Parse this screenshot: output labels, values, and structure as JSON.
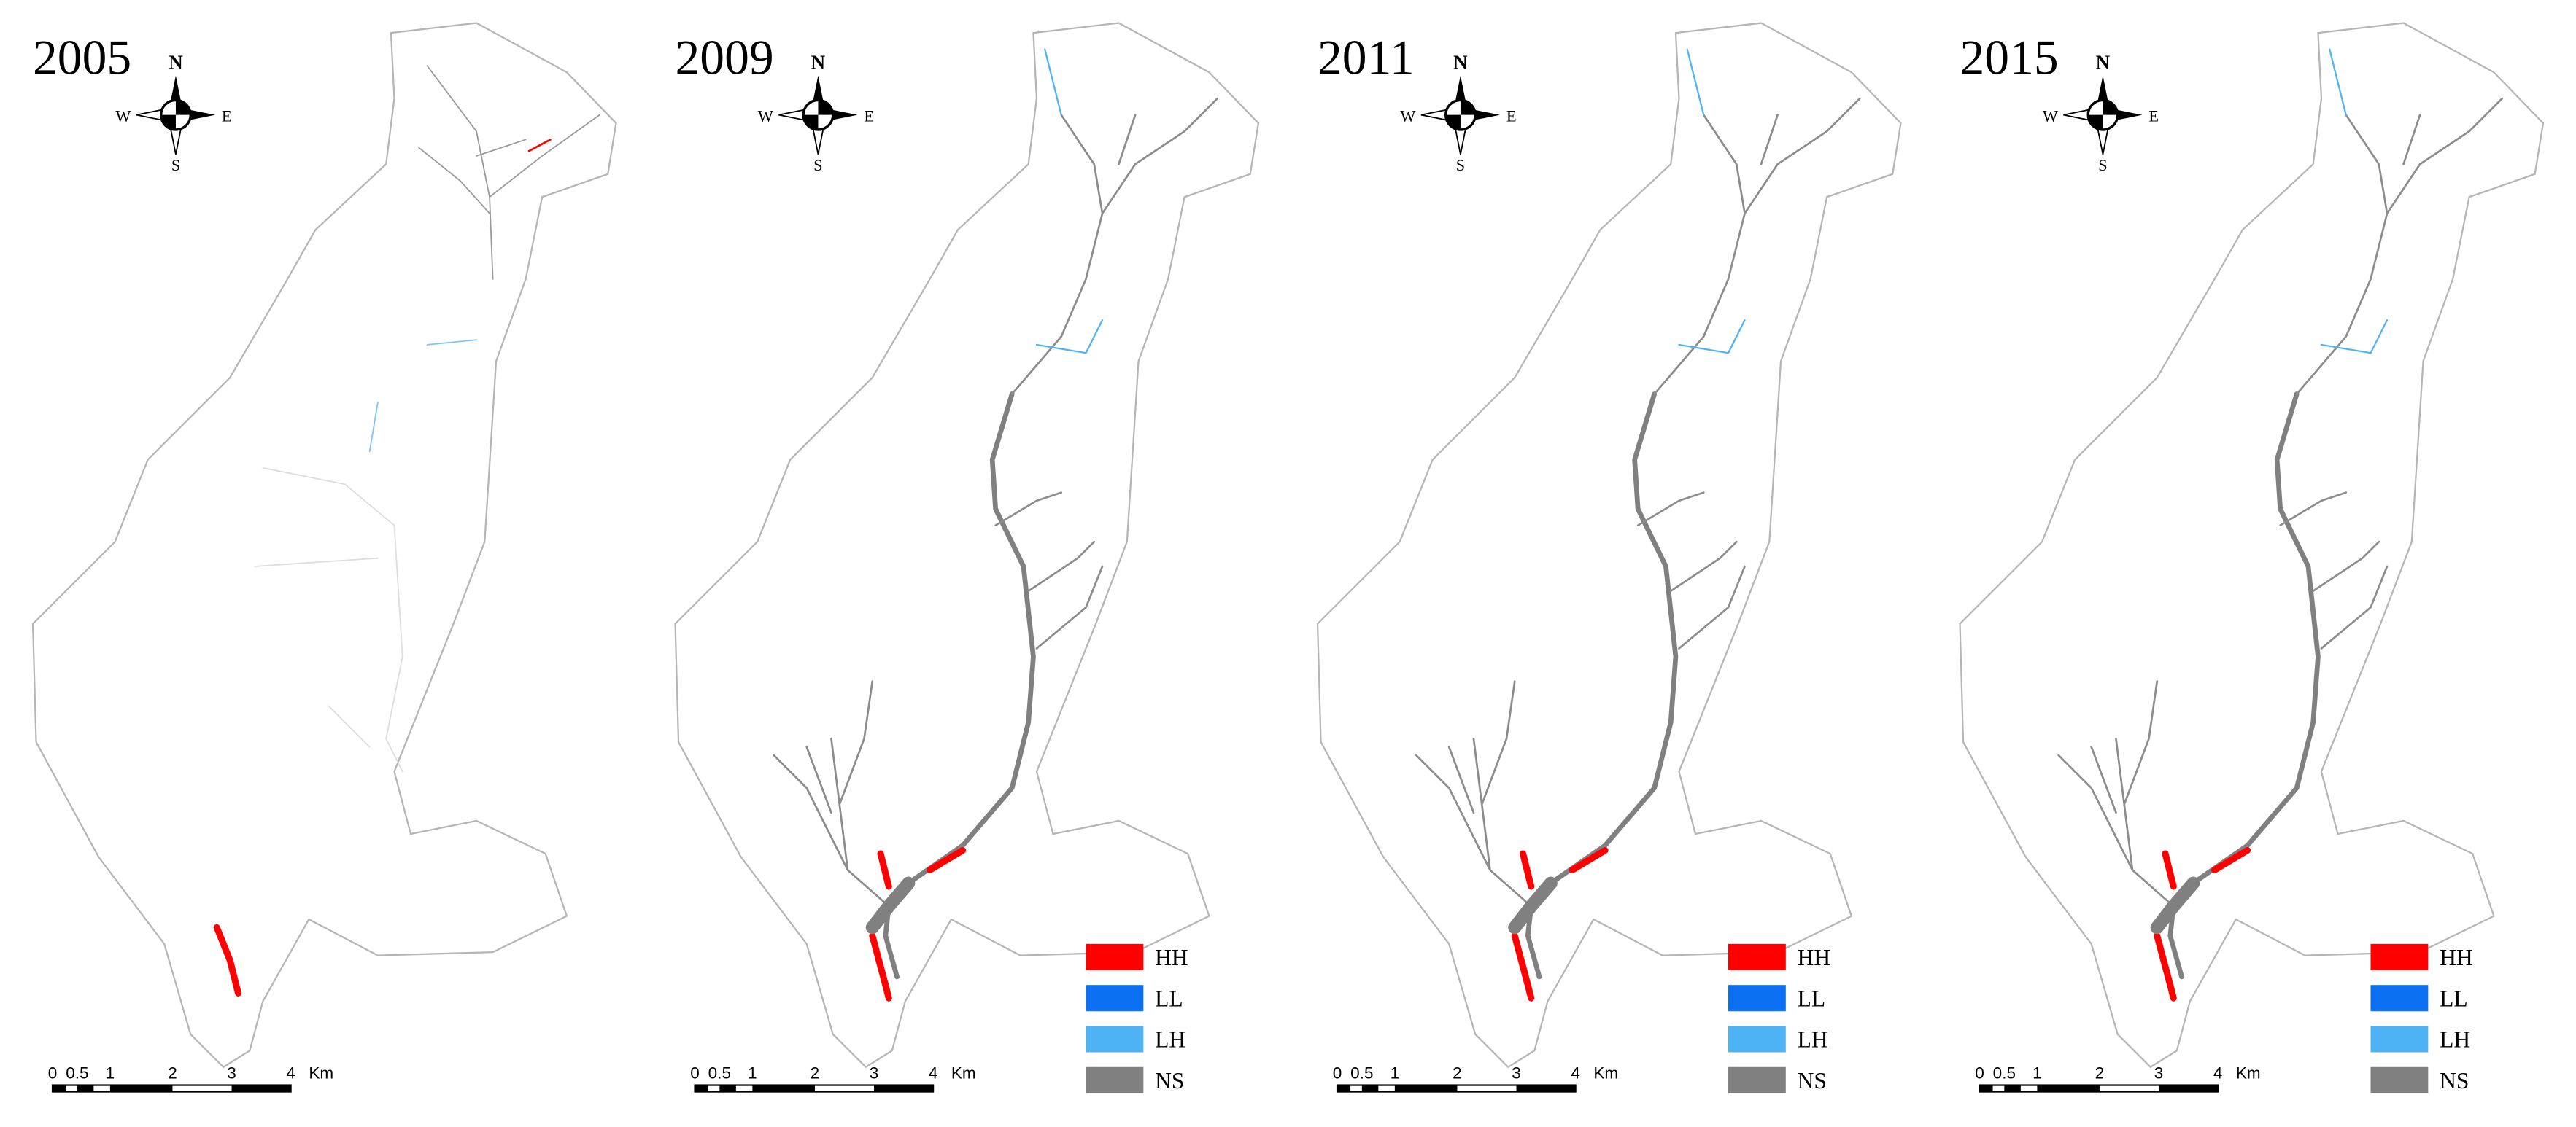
{
  "panels": [
    {
      "year": "2005",
      "compass": {
        "n": "N",
        "w": "W",
        "e": "E",
        "s": "S"
      },
      "scale": [
        "0",
        "0.5",
        "1",
        "2",
        "3",
        "4",
        "Km"
      ]
    },
    {
      "year": "2009",
      "compass": {
        "n": "N",
        "w": "W",
        "e": "E",
        "s": "S"
      },
      "scale": [
        "0",
        "0.5",
        "1",
        "2",
        "3",
        "4",
        "Km"
      ],
      "legend": [
        {
          "label": "HH",
          "color": "#ff0000"
        },
        {
          "label": "LL",
          "color": "#0a6ff0"
        },
        {
          "label": "LH",
          "color": "#4db3f5"
        },
        {
          "label": "NS",
          "color": "#808080"
        }
      ]
    },
    {
      "year": "2011",
      "compass": {
        "n": "N",
        "w": "W",
        "e": "E",
        "s": "S"
      },
      "scale": [
        "0",
        "0.5",
        "1",
        "2",
        "3",
        "4",
        "Km"
      ],
      "legend": [
        {
          "label": "HH",
          "color": "#ff0000"
        },
        {
          "label": "LL",
          "color": "#0a6ff0"
        },
        {
          "label": "LH",
          "color": "#4db3f5"
        },
        {
          "label": "NS",
          "color": "#808080"
        }
      ]
    },
    {
      "year": "2015",
      "compass": {
        "n": "N",
        "w": "W",
        "e": "E",
        "s": "S"
      },
      "scale": [
        "0",
        "0.5",
        "1",
        "2",
        "3",
        "4",
        "Km"
      ],
      "legend": [
        {
          "label": "HH",
          "color": "#ff0000"
        },
        {
          "label": "LL",
          "color": "#0a6ff0"
        },
        {
          "label": "LH",
          "color": "#4db3f5"
        },
        {
          "label": "NS",
          "color": "#808080"
        }
      ]
    }
  ]
}
